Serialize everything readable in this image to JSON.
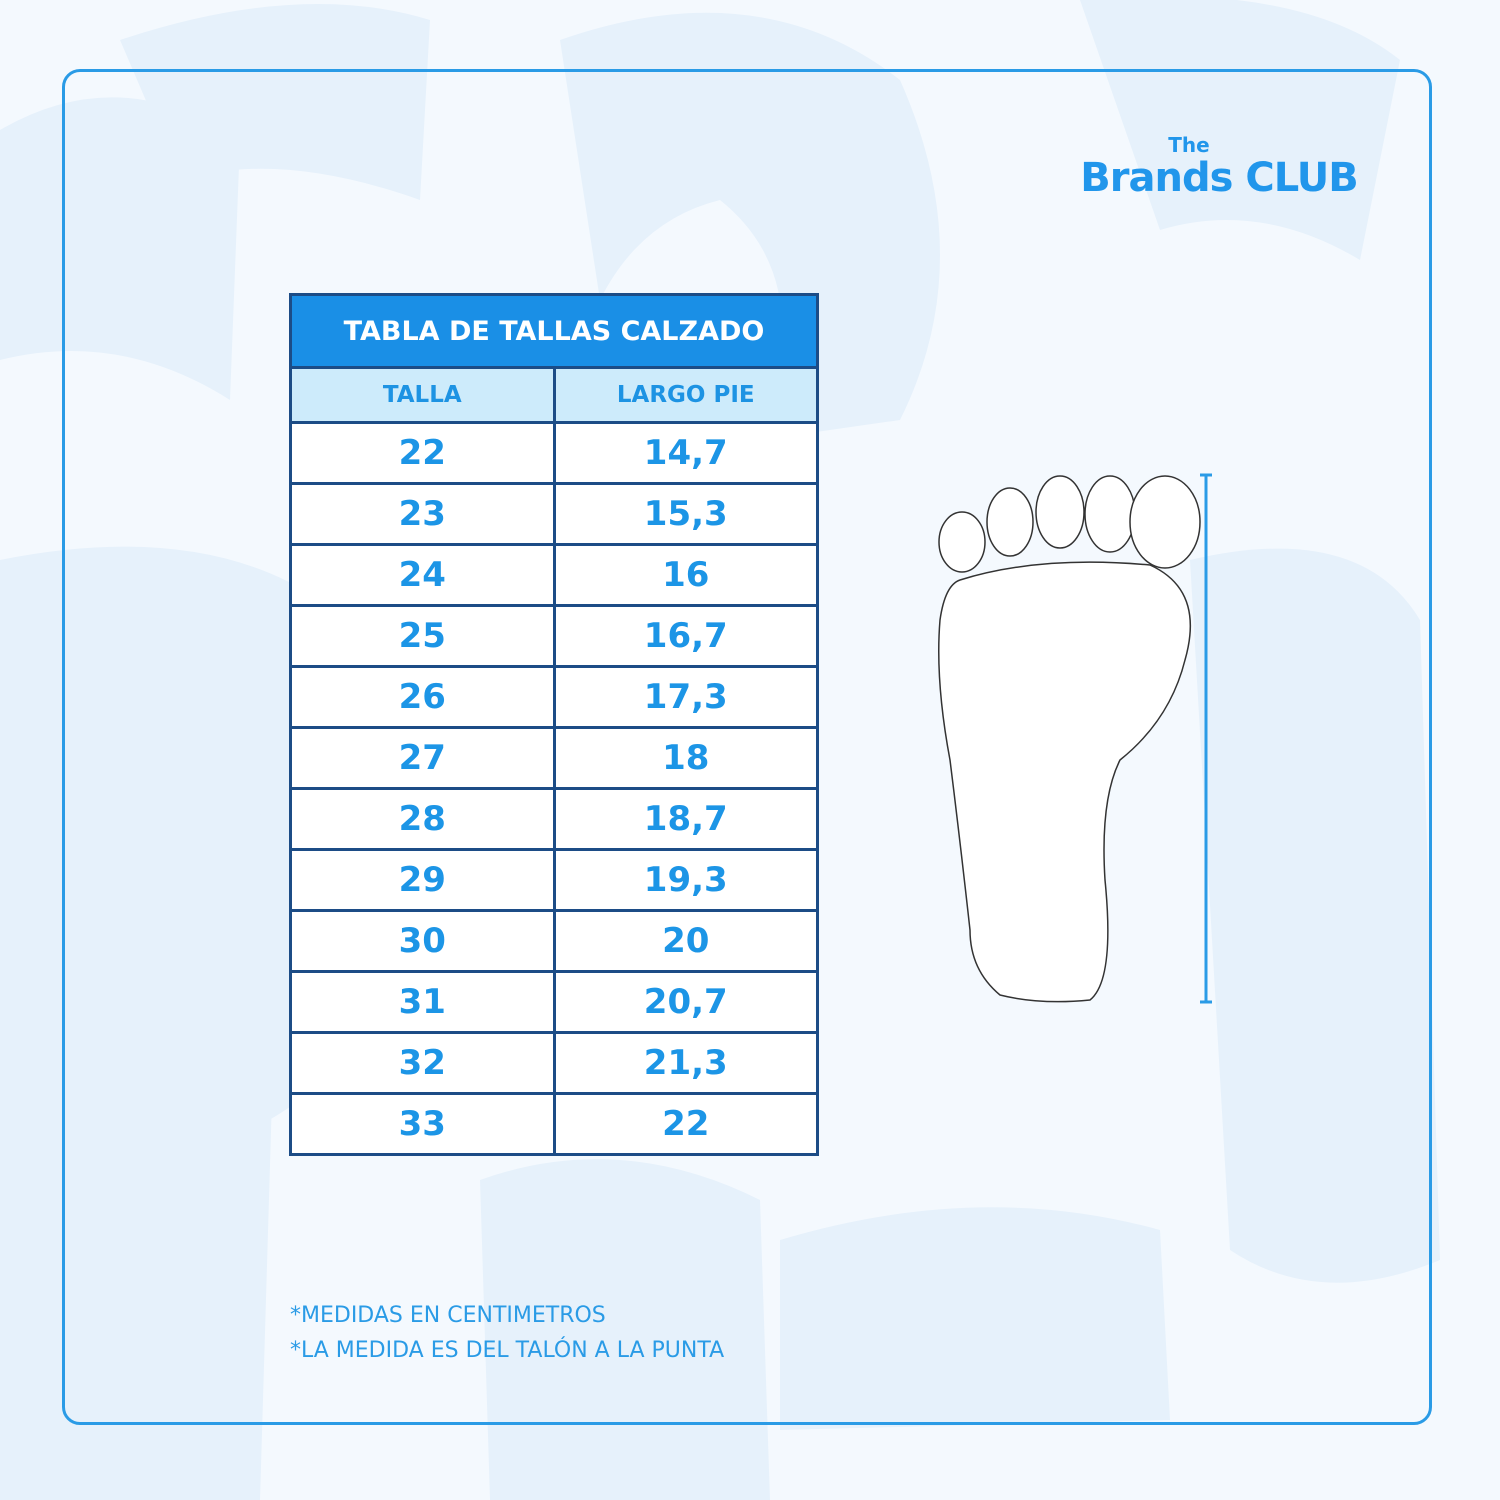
{
  "brand": {
    "the": "The",
    "name": "Brands CLUB",
    "color": "#2196eb"
  },
  "table": {
    "title": "TABLA DE TALLAS CALZADO",
    "headers": [
      "TALLA",
      "LARGO PIE"
    ],
    "rows": [
      [
        "22",
        "14,7"
      ],
      [
        "23",
        "15,3"
      ],
      [
        "24",
        "16"
      ],
      [
        "25",
        "16,7"
      ],
      [
        "26",
        "17,3"
      ],
      [
        "27",
        "18"
      ],
      [
        "28",
        "18,7"
      ],
      [
        "29",
        "19,3"
      ],
      [
        "30",
        "20"
      ],
      [
        "31",
        "20,7"
      ],
      [
        "32",
        "21,3"
      ],
      [
        "33",
        "22"
      ]
    ]
  },
  "notes": [
    "*MEDIDAS EN CENTIMETROS",
    "*LA MEDIDA ES DEL TALÓN A LA PUNTA"
  ],
  "colors": {
    "accent": "#1a8fe6",
    "border": "#1c4c86",
    "subheader_bg": "#cdebfb",
    "text": "#1c95e6"
  }
}
